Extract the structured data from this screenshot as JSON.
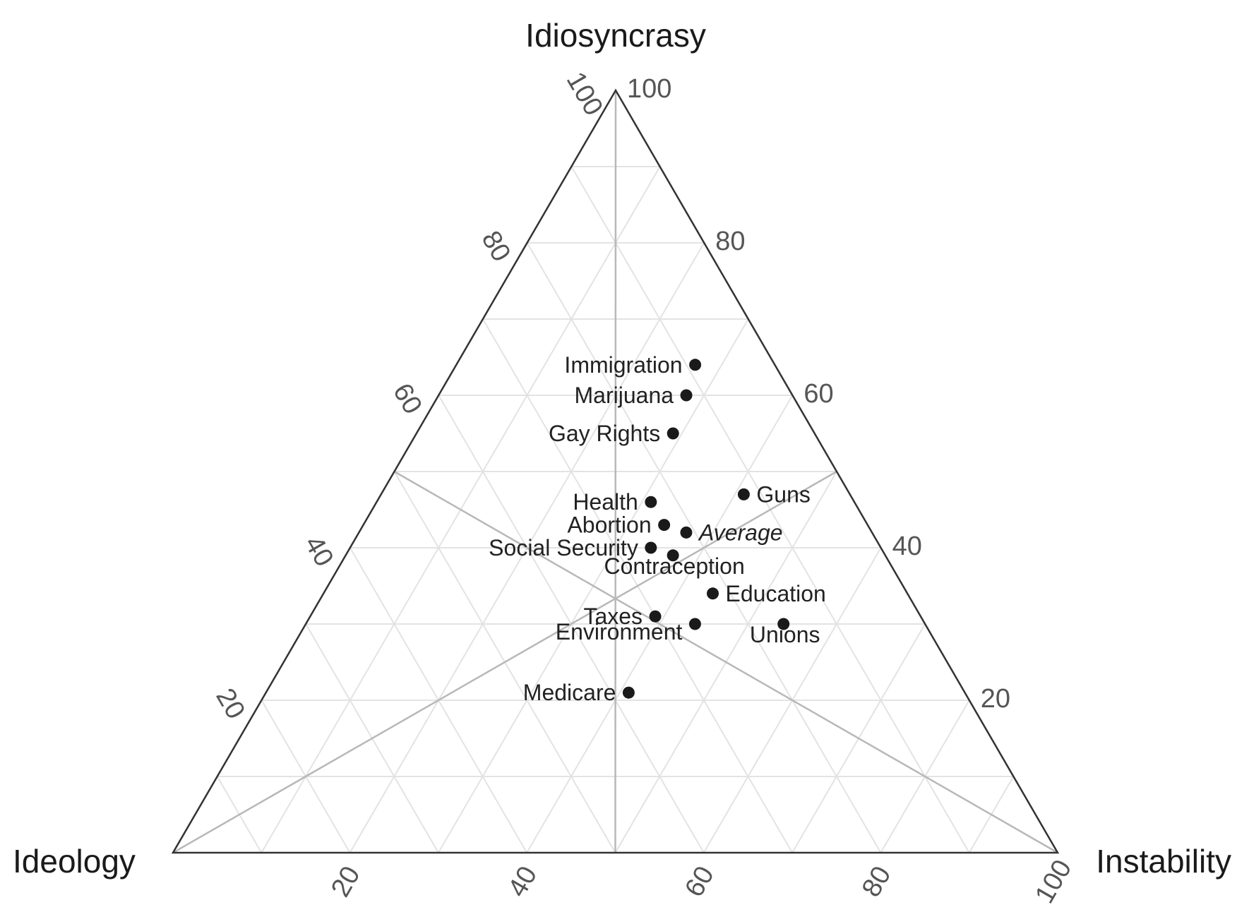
{
  "chart_data": {
    "type": "scatter",
    "subtype": "ternary",
    "title": "",
    "axes": {
      "top": "Idiosyncrasy",
      "left": "Ideology",
      "right": "Instability"
    },
    "ticks": {
      "left_edge": [
        "20",
        "40",
        "60",
        "80",
        "100"
      ],
      "right_edge": [
        "100",
        "80",
        "60",
        "40",
        "20"
      ],
      "bottom_edge": [
        "20",
        "40",
        "60",
        "80",
        "100"
      ]
    },
    "grid": true,
    "gridline_step": 10,
    "colors": {
      "grid": "#e3e3e3",
      "median_lines": "#b8b8b8",
      "frame": "#333333",
      "points": "#1a1a1a"
    },
    "points": [
      {
        "label": "Immigration",
        "idiosyncrasy": 64,
        "instability": 27,
        "ideology": 9,
        "label_side": "left",
        "italic": false
      },
      {
        "label": "Marijuana",
        "idiosyncrasy": 60,
        "instability": 28,
        "ideology": 12,
        "label_side": "left",
        "italic": false
      },
      {
        "label": "Gay Rights",
        "idiosyncrasy": 55,
        "instability": 29,
        "ideology": 16,
        "label_side": "left",
        "italic": false
      },
      {
        "label": "Guns",
        "idiosyncrasy": 47,
        "instability": 41,
        "ideology": 12,
        "label_side": "right",
        "italic": false
      },
      {
        "label": "Health",
        "idiosyncrasy": 46,
        "instability": 31,
        "ideology": 23,
        "label_side": "left",
        "italic": false
      },
      {
        "label": "Abortion",
        "idiosyncrasy": 43,
        "instability": 34,
        "ideology": 23,
        "label_side": "left",
        "italic": false
      },
      {
        "label": "Average",
        "idiosyncrasy": 42,
        "instability": 37,
        "ideology": 21,
        "label_side": "right",
        "italic": true
      },
      {
        "label": "Social Security",
        "idiosyncrasy": 40,
        "instability": 34,
        "ideology": 26,
        "label_side": "left",
        "italic": false
      },
      {
        "label": "Contraception",
        "idiosyncrasy": 39,
        "instability": 37,
        "ideology": 24,
        "label_side": "below",
        "italic": false
      },
      {
        "label": "Education",
        "idiosyncrasy": 34,
        "instability": 44,
        "ideology": 22,
        "label_side": "right",
        "italic": false
      },
      {
        "label": "Taxes",
        "idiosyncrasy": 31,
        "instability": 39,
        "ideology": 30,
        "label_side": "left",
        "italic": false
      },
      {
        "label": "Environment",
        "idiosyncrasy": 30,
        "instability": 44,
        "ideology": 26,
        "label_side": "below-left",
        "italic": false
      },
      {
        "label": "Unions",
        "idiosyncrasy": 30,
        "instability": 54,
        "ideology": 16,
        "label_side": "below",
        "italic": false
      },
      {
        "label": "Medicare",
        "idiosyncrasy": 21,
        "instability": 41,
        "ideology": 38,
        "label_side": "left",
        "italic": false
      }
    ]
  }
}
